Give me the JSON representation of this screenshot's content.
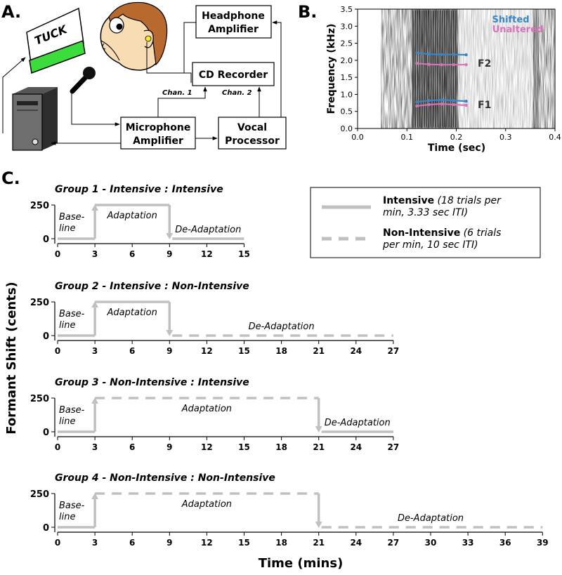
{
  "panel_labels": {
    "a": "A.",
    "b": "B.",
    "c": "C."
  },
  "panel_a": {
    "monitor_text": "TUCK",
    "headphone_amp": [
      "Headphone",
      "Amplifier"
    ],
    "cd_recorder": "CD Recorder",
    "chan1": "Chan. 1",
    "chan2": "Chan. 2",
    "mic_amp": [
      "Microphone",
      "Amplifier"
    ],
    "vocal_proc": [
      "Vocal",
      "Processor"
    ]
  },
  "chart_data": [
    {
      "type": "line",
      "panel": "B",
      "xlabel": "Time (sec)",
      "ylabel": "Frequency (kHz)",
      "xlim": [
        0.0,
        0.4
      ],
      "ylim": [
        0.0,
        3.5
      ],
      "x_ticks": [
        "0.0",
        "0.1",
        "0.2",
        "0.3",
        "0.4"
      ],
      "y_ticks": [
        "0.0",
        "0.5",
        "1.0",
        "1.5",
        "2.0",
        "2.5",
        "3.0",
        "3.5"
      ],
      "legend": [
        "Shifted",
        "Unaltered"
      ],
      "annotations": [
        "F2",
        "F1"
      ],
      "series": [
        {
          "name": "Shifted",
          "formant": "F2",
          "x": [
            0.12,
            0.145,
            0.17,
            0.195,
            0.22
          ],
          "y": [
            2.22,
            2.18,
            2.17,
            2.17,
            2.16
          ]
        },
        {
          "name": "Unaltered",
          "formant": "F2",
          "x": [
            0.12,
            0.145,
            0.17,
            0.195,
            0.22
          ],
          "y": [
            1.91,
            1.88,
            1.87,
            1.87,
            1.87
          ]
        },
        {
          "name": "Shifted",
          "formant": "F1",
          "x": [
            0.12,
            0.145,
            0.17,
            0.195,
            0.22
          ],
          "y": [
            0.78,
            0.82,
            0.84,
            0.82,
            0.8
          ]
        },
        {
          "name": "Unaltered",
          "formant": "F1",
          "x": [
            0.12,
            0.145,
            0.17,
            0.195,
            0.22
          ],
          "y": [
            0.66,
            0.7,
            0.72,
            0.7,
            0.68
          ]
        }
      ]
    },
    {
      "type": "line",
      "panel": "C",
      "ylabel": "Formant Shift (cents)",
      "xlabel": "Time (mins)",
      "legend": [
        {
          "style": "solid",
          "bold": "Intensive",
          "italic": [
            "(18 trials per",
            "min, 3.33 sec ITI)"
          ]
        },
        {
          "style": "dashed",
          "bold": "Non-Intensive",
          "italic": [
            "(6 trials",
            "per min, 10 sec ITI)"
          ]
        }
      ],
      "groups": [
        {
          "title": "Group 1 - Intensive : Intensive",
          "xlim": [
            0,
            15
          ],
          "x_ticks": [
            0,
            3,
            6,
            9,
            12,
            15
          ],
          "y_ticks": [
            0,
            250
          ],
          "adapt_start": 3,
          "adapt_end": 9,
          "adapt_style": "solid",
          "deadapt_style": "solid",
          "labels": {
            "baseline": [
              "Base-",
              "line"
            ],
            "adaptation": "Adaptation",
            "deadaptation": "De-Adaptation"
          }
        },
        {
          "title": "Group 2 - Intensive : Non-Intensive",
          "xlim": [
            0,
            27
          ],
          "x_ticks": [
            0,
            3,
            6,
            9,
            12,
            15,
            18,
            21,
            24,
            27
          ],
          "y_ticks": [
            0,
            250
          ],
          "adapt_start": 3,
          "adapt_end": 9,
          "adapt_style": "solid",
          "deadapt_style": "dashed",
          "labels": {
            "baseline": [
              "Base-",
              "line"
            ],
            "adaptation": "Adaptation",
            "deadaptation": "De-Adaptation"
          }
        },
        {
          "title": "Group 3 - Non-Intensive : Intensive",
          "xlim": [
            0,
            27
          ],
          "x_ticks": [
            0,
            3,
            6,
            9,
            12,
            15,
            18,
            21,
            24,
            27
          ],
          "y_ticks": [
            0,
            250
          ],
          "adapt_start": 3,
          "adapt_end": 21,
          "adapt_style": "dashed",
          "deadapt_style": "solid",
          "labels": {
            "baseline": [
              "Base-",
              "line"
            ],
            "adaptation": "Adaptation",
            "deadaptation": "De-Adaptation"
          }
        },
        {
          "title": "Group 4 - Non-Intensive : Non-Intensive",
          "xlim": [
            0,
            39
          ],
          "x_ticks": [
            0,
            3,
            6,
            9,
            12,
            15,
            18,
            21,
            24,
            27,
            30,
            33,
            36,
            39
          ],
          "y_ticks": [
            0,
            250
          ],
          "adapt_start": 3,
          "adapt_end": 21,
          "adapt_style": "dashed",
          "deadapt_style": "dashed",
          "labels": {
            "baseline": [
              "Base-",
              "line"
            ],
            "adaptation": "Adaptation",
            "deadaptation": "De-Adaptation"
          }
        }
      ]
    }
  ],
  "colors": {
    "schedule_line": "#c0c0c0",
    "shifted": "#3b86c4",
    "unaltered": "#d574b8",
    "screen_green": "#3ddc3d",
    "hair": "#b86a2e",
    "face": "#f7dcb4"
  }
}
